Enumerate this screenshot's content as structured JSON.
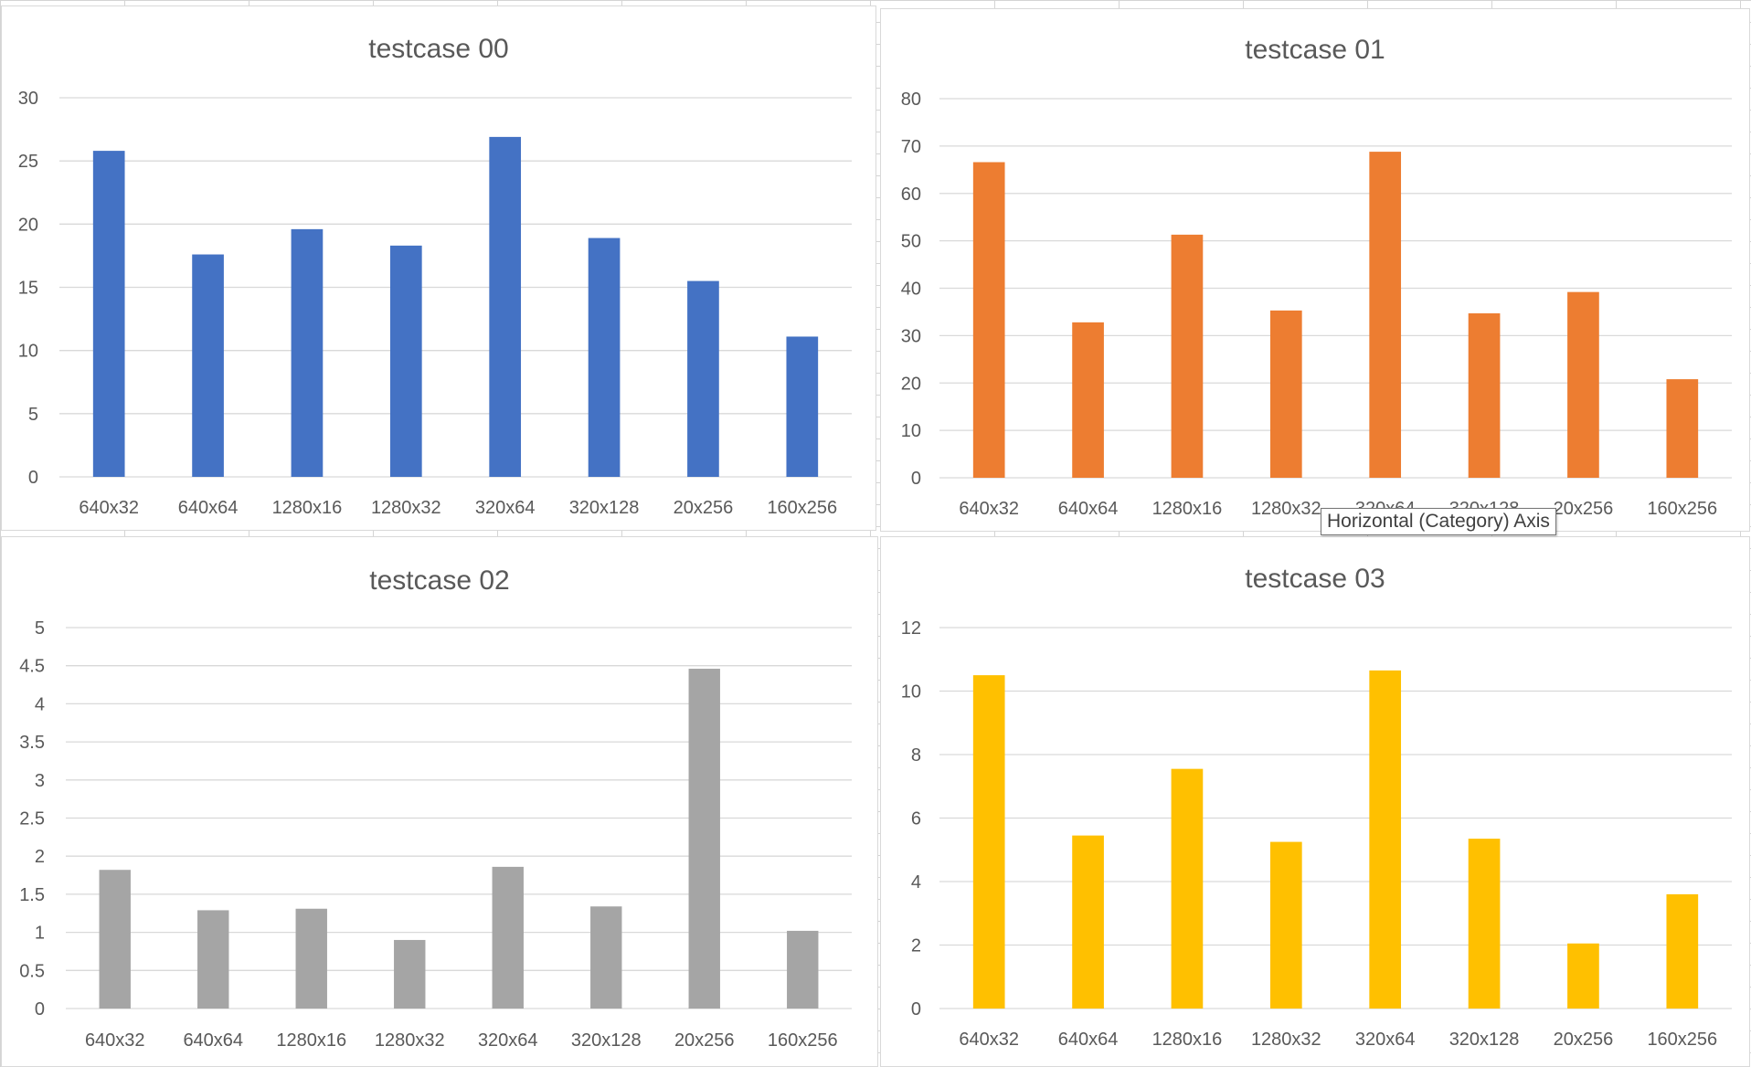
{
  "chart_data": [
    {
      "type": "bar",
      "title": "testcase 00",
      "categories": [
        "640x32",
        "640x64",
        "1280x16",
        "1280x32",
        "320x64",
        "320x128",
        "20x256",
        "160x256"
      ],
      "values": [
        25.8,
        17.6,
        19.6,
        18.3,
        26.9,
        18.9,
        15.5,
        11.1
      ],
      "ylim": [
        0,
        30
      ],
      "yticks": [
        "0",
        "5",
        "10",
        "15",
        "20",
        "25",
        "30"
      ],
      "color": "#4472c4",
      "grid": true
    },
    {
      "type": "bar",
      "title": "testcase 01",
      "categories": [
        "640x32",
        "640x64",
        "1280x16",
        "1280x32",
        "320x64",
        "320x128",
        "20x256",
        "160x256"
      ],
      "values": [
        66.6,
        32.8,
        51.3,
        35.3,
        68.8,
        34.7,
        39.2,
        20.8
      ],
      "ylim": [
        0,
        80
      ],
      "yticks": [
        "0",
        "10",
        "20",
        "30",
        "40",
        "50",
        "60",
        "70",
        "80"
      ],
      "color": "#ed7d31",
      "grid": true
    },
    {
      "type": "bar",
      "title": "testcase 02",
      "categories": [
        "640x32",
        "640x64",
        "1280x16",
        "1280x32",
        "320x64",
        "320x128",
        "20x256",
        "160x256"
      ],
      "values": [
        1.82,
        1.29,
        1.31,
        0.9,
        1.86,
        1.34,
        4.46,
        1.02
      ],
      "ylim": [
        0,
        5
      ],
      "yticks": [
        "0",
        "0.5",
        "1",
        "1.5",
        "2",
        "2.5",
        "3",
        "3.5",
        "4",
        "4.5",
        "5"
      ],
      "color": "#a5a5a5",
      "grid": true
    },
    {
      "type": "bar",
      "title": "testcase 03",
      "categories": [
        "640x32",
        "640x64",
        "1280x16",
        "1280x32",
        "320x64",
        "320x128",
        "20x256",
        "160x256"
      ],
      "values": [
        10.5,
        5.45,
        7.55,
        5.25,
        10.65,
        5.35,
        2.05,
        3.6
      ],
      "ylim": [
        0,
        12
      ],
      "yticks": [
        "0",
        "2",
        "4",
        "6",
        "8",
        "10",
        "12"
      ],
      "color": "#ffc000",
      "grid": true
    }
  ],
  "tooltip": "Horizontal (Category) Axis"
}
